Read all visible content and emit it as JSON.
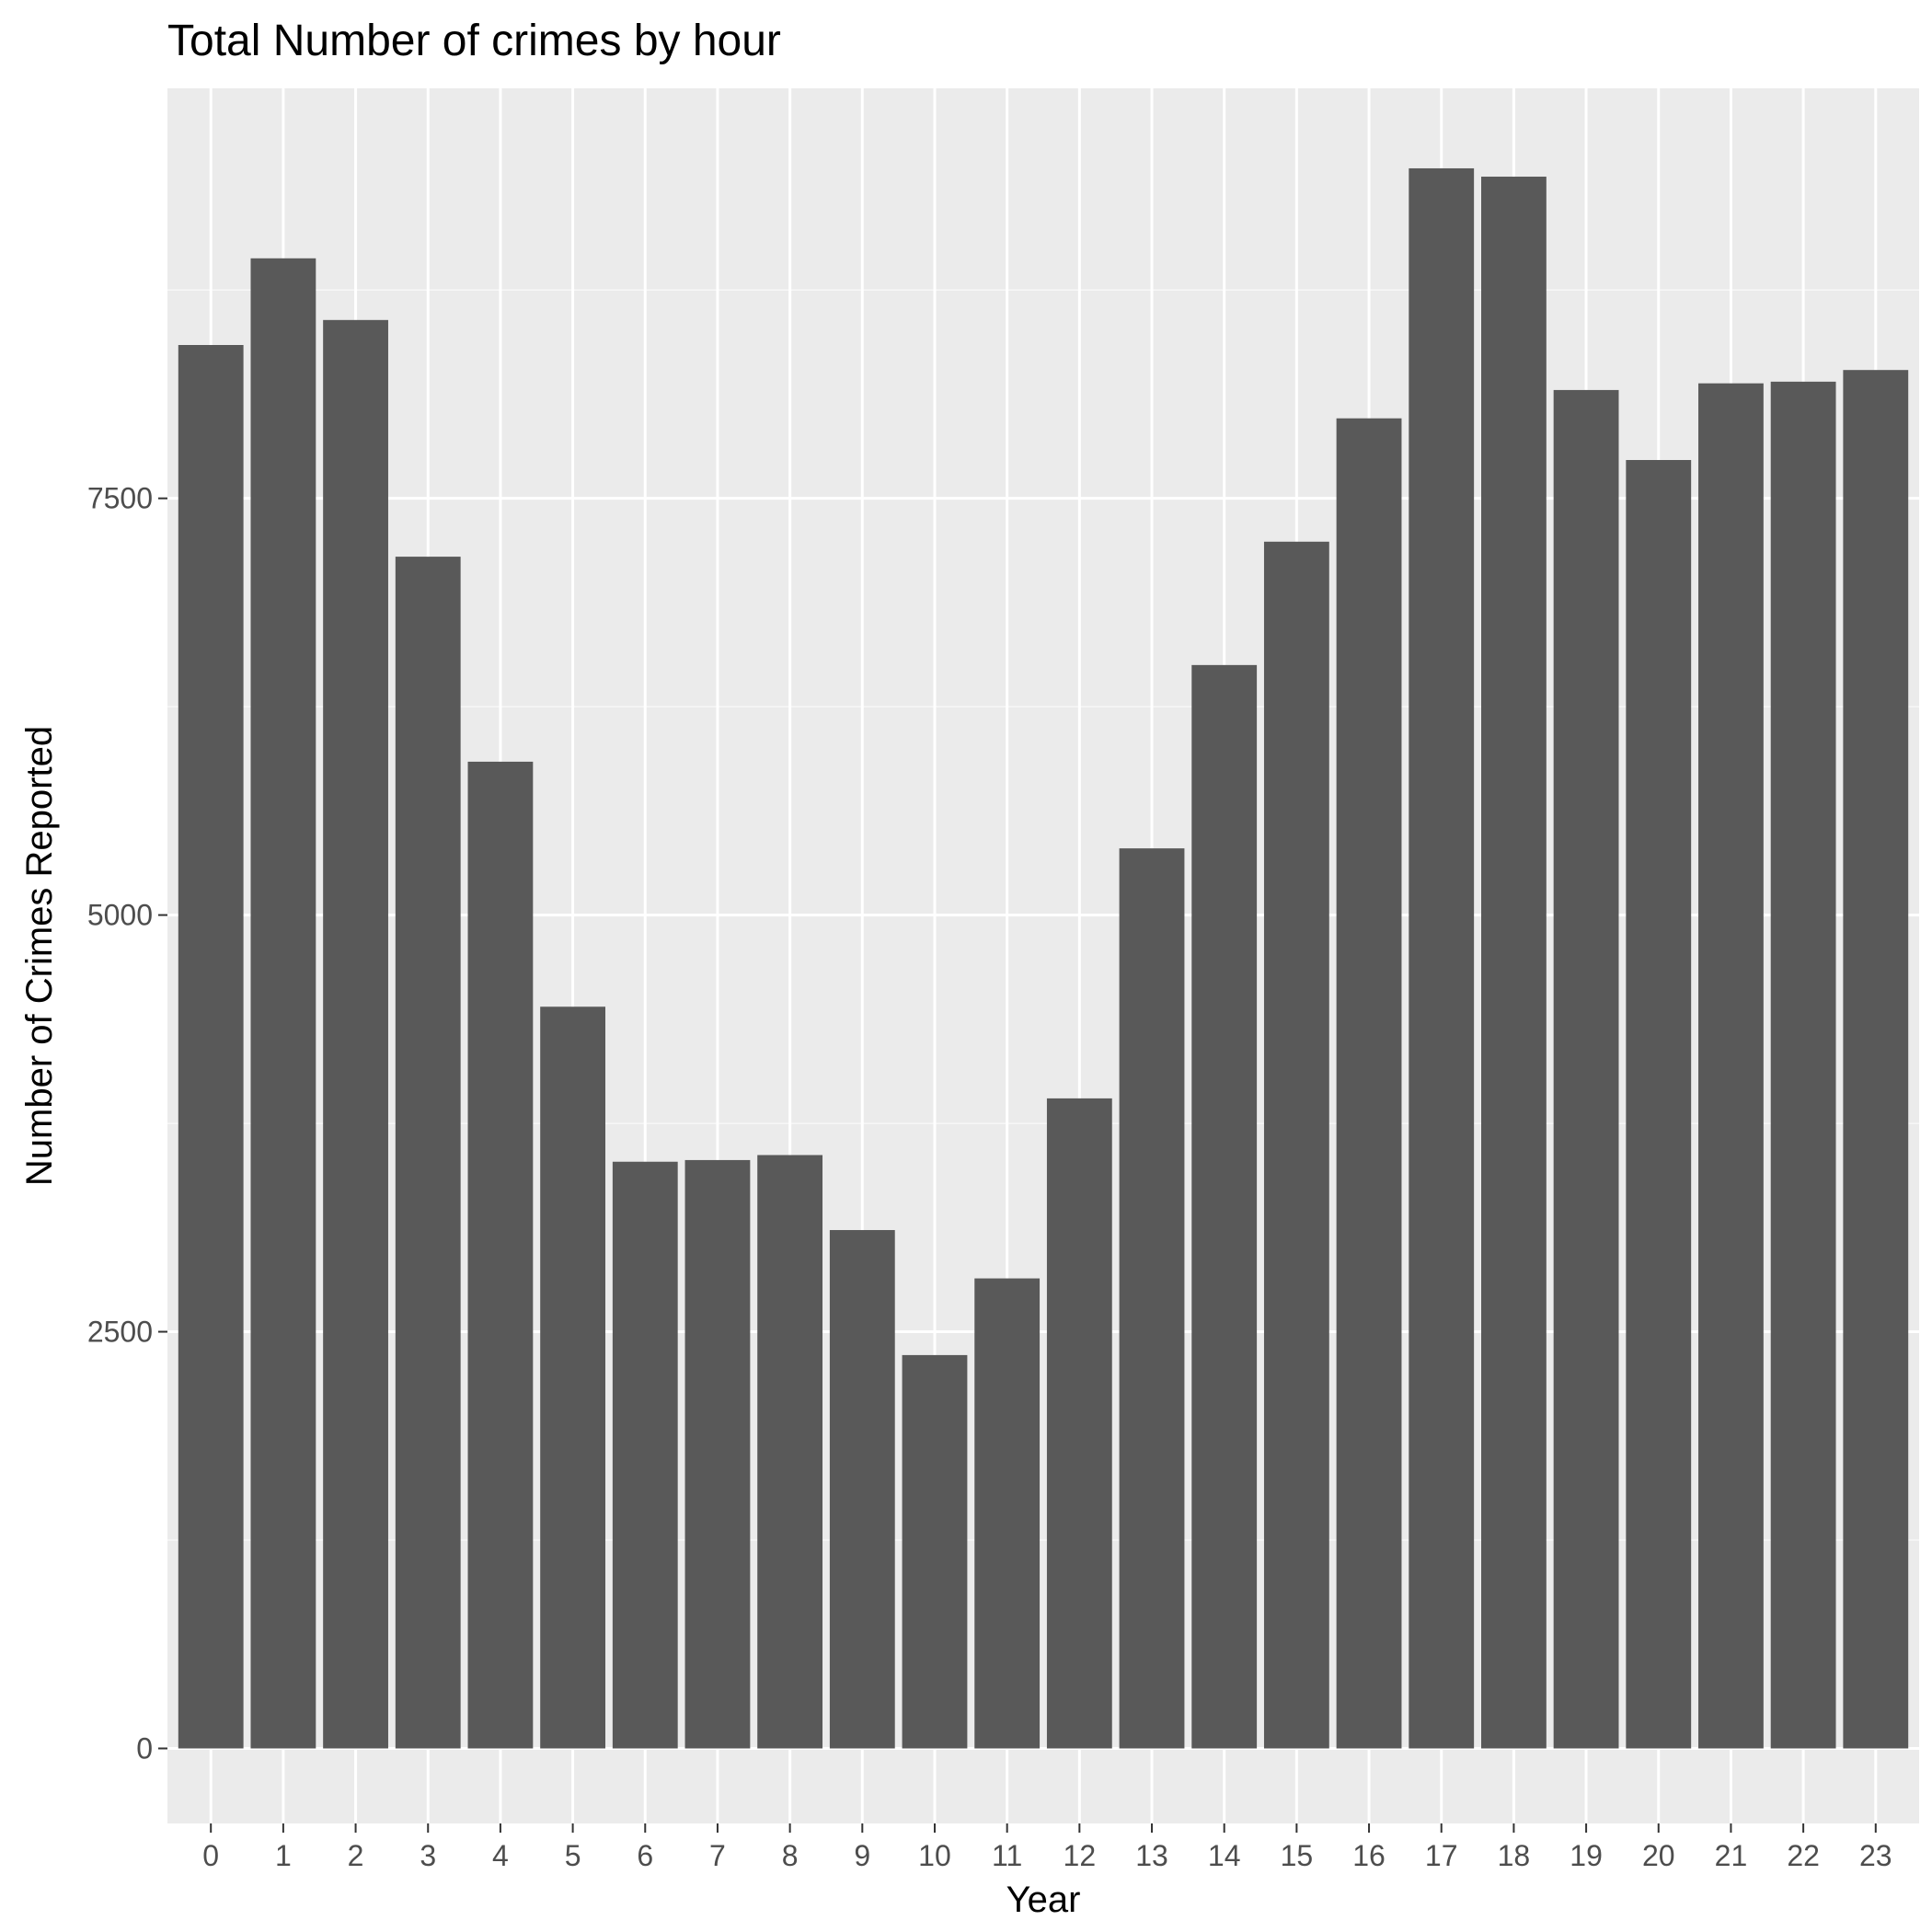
{
  "colors": {
    "panel_background": "#ebebeb",
    "grid_major": "#ffffff",
    "grid_minor": "#f7f7f7",
    "bar_fill": "#595959",
    "tick_mark": "#333333"
  },
  "chart_data": {
    "type": "bar",
    "title": "Total Number of crimes by hour",
    "xlabel": "Year",
    "ylabel": "Number of Crimes Reported",
    "categories": [
      "0",
      "1",
      "2",
      "3",
      "4",
      "5",
      "6",
      "7",
      "8",
      "9",
      "10",
      "11",
      "12",
      "13",
      "14",
      "15",
      "16",
      "17",
      "18",
      "19",
      "20",
      "21",
      "22",
      "23"
    ],
    "values": [
      8420,
      8940,
      8570,
      7150,
      5920,
      4450,
      3520,
      3530,
      3560,
      3110,
      2360,
      2820,
      3900,
      5400,
      6500,
      7240,
      7980,
      9480,
      9430,
      8150,
      7730,
      8190,
      8200,
      8270
    ],
    "ylim": [
      -450,
      9960
    ],
    "yticks": [
      0,
      2500,
      5000,
      7500
    ],
    "ytick_labels": [
      "0",
      "2500",
      "5000",
      "7500"
    ],
    "grid": true,
    "legend": "none"
  }
}
